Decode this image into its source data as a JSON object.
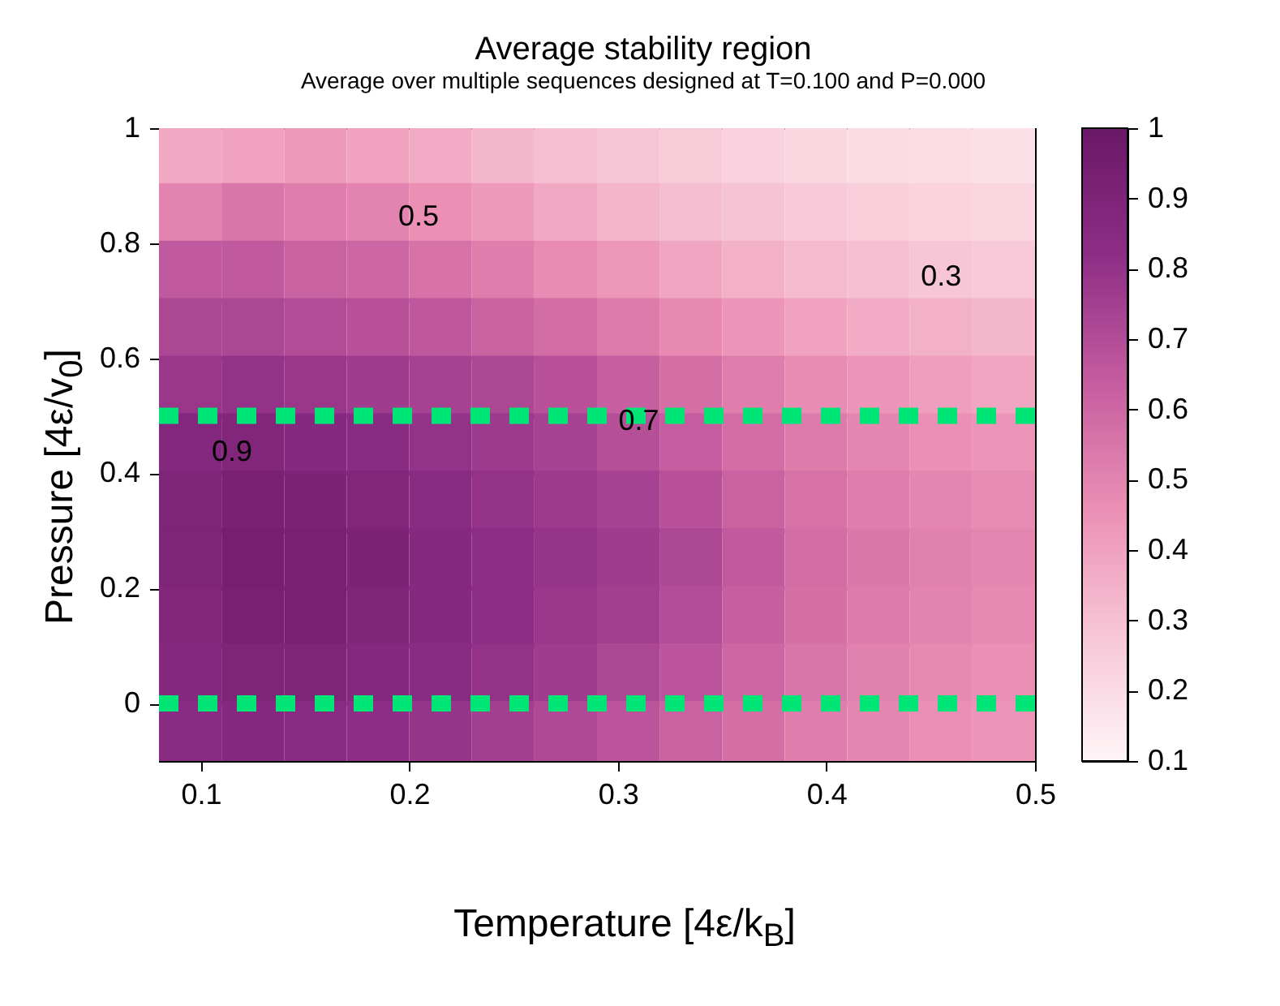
{
  "chart_data": {
    "type": "scatter",
    "marker": "square",
    "title": "Average stability region",
    "subtitle": "Average over multiple sequences designed at T=0.100 and P=0.000",
    "xlabel": "Temperature [4ε/k$_{B}$]",
    "ylabel": "Pressure [4ε/v$_{0}$]",
    "x": [
      0.095,
      0.125,
      0.155,
      0.185,
      0.215,
      0.245,
      0.275,
      0.305,
      0.335,
      0.365,
      0.395,
      0.425,
      0.455,
      0.485,
      0.095,
      0.125,
      0.155,
      0.185,
      0.215,
      0.245,
      0.275,
      0.305,
      0.335,
      0.365,
      0.395,
      0.425,
      0.455,
      0.485,
      0.095,
      0.125,
      0.155,
      0.185,
      0.215,
      0.245,
      0.275,
      0.305,
      0.335,
      0.365,
      0.395,
      0.425,
      0.455,
      0.485,
      0.095,
      0.125,
      0.155,
      0.185,
      0.215,
      0.245,
      0.275,
      0.305,
      0.335,
      0.365,
      0.395,
      0.425,
      0.455,
      0.485,
      0.095,
      0.125,
      0.155,
      0.185,
      0.215,
      0.245,
      0.275,
      0.305,
      0.335,
      0.365,
      0.395,
      0.425,
      0.455,
      0.485,
      0.095,
      0.125,
      0.155,
      0.185,
      0.215,
      0.245,
      0.275,
      0.305,
      0.335,
      0.365,
      0.395,
      0.425,
      0.455,
      0.485,
      0.095,
      0.125,
      0.155,
      0.185,
      0.215,
      0.245,
      0.275,
      0.305,
      0.335,
      0.365,
      0.395,
      0.425,
      0.455,
      0.485,
      0.095,
      0.125,
      0.155,
      0.185,
      0.215,
      0.245,
      0.275,
      0.305,
      0.335,
      0.365,
      0.395,
      0.425,
      0.455,
      0.485,
      0.095,
      0.125,
      0.155,
      0.185,
      0.215,
      0.245,
      0.275,
      0.305,
      0.335,
      0.365,
      0.395,
      0.425,
      0.455,
      0.485,
      0.095,
      0.125,
      0.155,
      0.185,
      0.215,
      0.245,
      0.275,
      0.305,
      0.335,
      0.365,
      0.395,
      0.425,
      0.455,
      0.485,
      0.095,
      0.125,
      0.155,
      0.185,
      0.215,
      0.245,
      0.275,
      0.305,
      0.335,
      0.365,
      0.395,
      0.425,
      0.455,
      0.485
    ],
    "values": [
      0.95,
      0.95,
      0.95,
      0.95,
      0.95,
      0.95,
      0.95,
      0.95,
      0.95,
      0.95,
      0.95,
      0.95,
      0.95,
      0.95,
      0.85,
      0.85,
      0.85,
      0.85,
      0.85,
      0.85,
      0.85,
      0.85,
      0.85,
      0.85,
      0.85,
      0.85,
      0.85,
      0.85,
      0.75,
      0.75,
      0.75,
      0.75,
      0.75,
      0.75,
      0.75,
      0.75,
      0.75,
      0.75,
      0.75,
      0.75,
      0.75,
      0.75,
      0.65,
      0.65,
      0.65,
      0.65,
      0.65,
      0.65,
      0.65,
      0.65,
      0.65,
      0.65,
      0.65,
      0.65,
      0.65,
      0.65,
      0.55,
      0.55,
      0.55,
      0.55,
      0.55,
      0.55,
      0.55,
      0.55,
      0.55,
      0.55,
      0.55,
      0.55,
      0.55,
      0.55,
      0.45,
      0.45,
      0.45,
      0.45,
      0.45,
      0.45,
      0.45,
      0.45,
      0.45,
      0.45,
      0.45,
      0.45,
      0.45,
      0.45,
      0.35,
      0.35,
      0.35,
      0.35,
      0.35,
      0.35,
      0.35,
      0.35,
      0.35,
      0.35,
      0.35,
      0.35,
      0.35,
      0.35,
      0.25,
      0.25,
      0.25,
      0.25,
      0.25,
      0.25,
      0.25,
      0.25,
      0.25,
      0.25,
      0.25,
      0.25,
      0.25,
      0.25,
      0.15,
      0.15,
      0.15,
      0.15,
      0.15,
      0.15,
      0.15,
      0.15,
      0.15,
      0.15,
      0.15,
      0.15,
      0.15,
      0.15,
      0.05,
      0.05,
      0.05,
      0.05,
      0.05,
      0.05,
      0.05,
      0.05,
      0.05,
      0.05,
      0.05,
      0.05,
      0.05,
      0.05,
      -0.05,
      -0.05,
      -0.05,
      -0.05,
      -0.05,
      -0.05,
      -0.05,
      -0.05,
      -0.05,
      -0.05,
      -0.05,
      -0.05,
      -0.05,
      -0.05
    ],
    "cvalues": [
      0.38,
      0.4,
      0.42,
      0.4,
      0.37,
      0.33,
      0.3,
      0.28,
      0.26,
      0.24,
      0.22,
      0.2,
      0.19,
      0.18,
      0.5,
      0.55,
      0.52,
      0.5,
      0.46,
      0.42,
      0.38,
      0.34,
      0.31,
      0.29,
      0.27,
      0.25,
      0.23,
      0.22,
      0.65,
      0.65,
      0.62,
      0.6,
      0.56,
      0.52,
      0.47,
      0.43,
      0.39,
      0.35,
      0.32,
      0.3,
      0.28,
      0.27,
      0.72,
      0.72,
      0.7,
      0.68,
      0.66,
      0.62,
      0.58,
      0.53,
      0.48,
      0.44,
      0.4,
      0.37,
      0.35,
      0.33,
      0.78,
      0.8,
      0.78,
      0.76,
      0.74,
      0.72,
      0.68,
      0.63,
      0.57,
      0.52,
      0.47,
      0.44,
      0.41,
      0.39,
      0.87,
      0.88,
      0.86,
      0.84,
      0.8,
      0.77,
      0.74,
      0.69,
      0.64,
      0.58,
      0.53,
      0.49,
      0.46,
      0.44,
      0.9,
      0.92,
      0.91,
      0.88,
      0.84,
      0.8,
      0.77,
      0.74,
      0.68,
      0.62,
      0.56,
      0.52,
      0.49,
      0.47,
      0.9,
      0.94,
      0.93,
      0.91,
      0.86,
      0.82,
      0.79,
      0.76,
      0.72,
      0.65,
      0.58,
      0.54,
      0.51,
      0.49,
      0.88,
      0.93,
      0.93,
      0.9,
      0.86,
      0.82,
      0.78,
      0.75,
      0.7,
      0.63,
      0.57,
      0.53,
      0.5,
      0.48,
      0.86,
      0.9,
      0.9,
      0.87,
      0.84,
      0.8,
      0.76,
      0.72,
      0.67,
      0.6,
      0.55,
      0.51,
      0.48,
      0.46,
      0.84,
      0.86,
      0.85,
      0.82,
      0.79,
      0.75,
      0.71,
      0.67,
      0.62,
      0.57,
      0.52,
      0.49,
      0.46,
      0.44
    ],
    "xlim": [
      0.08,
      0.5
    ],
    "xticks": [
      0.1,
      0.2,
      0.3,
      0.4,
      0.5
    ],
    "ylim": [
      -0.1,
      1
    ],
    "yticks": [
      0,
      0.2,
      0.4,
      0.6,
      0.8,
      1
    ],
    "clim": [
      0.1,
      1
    ],
    "cticks": [
      0.1,
      0.2,
      0.3,
      0.4,
      0.5,
      0.6,
      0.7,
      0.8,
      0.9,
      1
    ],
    "ref_lines": [
      {
        "axis": "y",
        "value": 0.5,
        "color": "#00e676",
        "line_style": "dotted"
      },
      {
        "axis": "y",
        "value": 0,
        "color": "#00e676",
        "line_style": "dotted"
      }
    ],
    "annotations": [
      "0.5",
      {
        "text": "0.3",
        "x": 0.455,
        "y": 0.74
      },
      {
        "text": "0.7",
        "x": 0.31,
        "y": 0.49
      },
      "0.9"
    ]
  }
}
